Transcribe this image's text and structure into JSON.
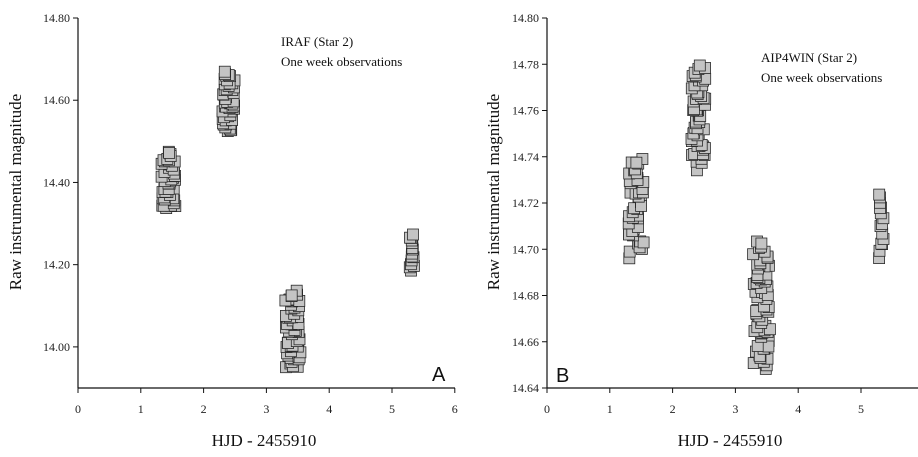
{
  "colors": {
    "marker_fill": "#c4c4c4",
    "marker_edge": "#2a2a2a",
    "axis": "#111111",
    "background": "#ffffff"
  },
  "chart_data": [
    {
      "type": "scatter",
      "panel_label": "A",
      "annotation": [
        "IRAF (Star 2)",
        "One week observations"
      ],
      "xlabel": "HJD - 2455910",
      "ylabel": "Raw instrumental magnitude",
      "xlim": [
        0,
        6
      ],
      "ylim": [
        13.9,
        14.8
      ],
      "xticks": [
        "0",
        "1",
        "2",
        "3",
        "4",
        "5",
        "6"
      ],
      "yticks": [
        "14.00",
        "14.20",
        "14.40",
        "14.60",
        "14.80"
      ],
      "y_inverted": false,
      "marker": "square",
      "clusters": [
        {
          "x_range": [
            1.33,
            1.55
          ],
          "y_range": [
            14.33,
            14.48
          ],
          "count": 45
        },
        {
          "x_range": [
            2.3,
            2.5
          ],
          "y_range": [
            14.52,
            14.67
          ],
          "count": 55
        },
        {
          "x_range": [
            3.3,
            3.55
          ],
          "y_range": [
            13.94,
            14.14
          ],
          "count": 60
        },
        {
          "x_range": [
            5.27,
            5.35
          ],
          "y_range": [
            14.18,
            14.28
          ],
          "count": 15
        }
      ]
    },
    {
      "type": "scatter",
      "panel_label": "B",
      "annotation": [
        "AIP4WIN (Star 2)",
        "One week observations"
      ],
      "xlabel": "HJD - 2455910",
      "ylabel": "Raw instrumental magnitude",
      "xlim": [
        0,
        6
      ],
      "ylim": [
        14.64,
        14.8
      ],
      "xticks": [
        "0",
        "1",
        "2",
        "3",
        "4",
        "5"
      ],
      "yticks": [
        "14.64",
        "14.66",
        "14.68",
        "14.70",
        "14.72",
        "14.74",
        "14.76",
        "14.78",
        "14.80"
      ],
      "y_inverted": false,
      "marker": "square",
      "clusters": [
        {
          "x_range": [
            1.3,
            1.55
          ],
          "y_range": [
            14.696,
            14.741
          ],
          "count": 45
        },
        {
          "x_range": [
            2.3,
            2.52
          ],
          "y_range": [
            14.734,
            14.781
          ],
          "count": 60
        },
        {
          "x_range": [
            3.28,
            3.55
          ],
          "y_range": [
            14.648,
            14.705
          ],
          "count": 75
        },
        {
          "x_range": [
            5.28,
            5.36
          ],
          "y_range": [
            14.696,
            14.726
          ],
          "count": 15
        }
      ]
    }
  ]
}
